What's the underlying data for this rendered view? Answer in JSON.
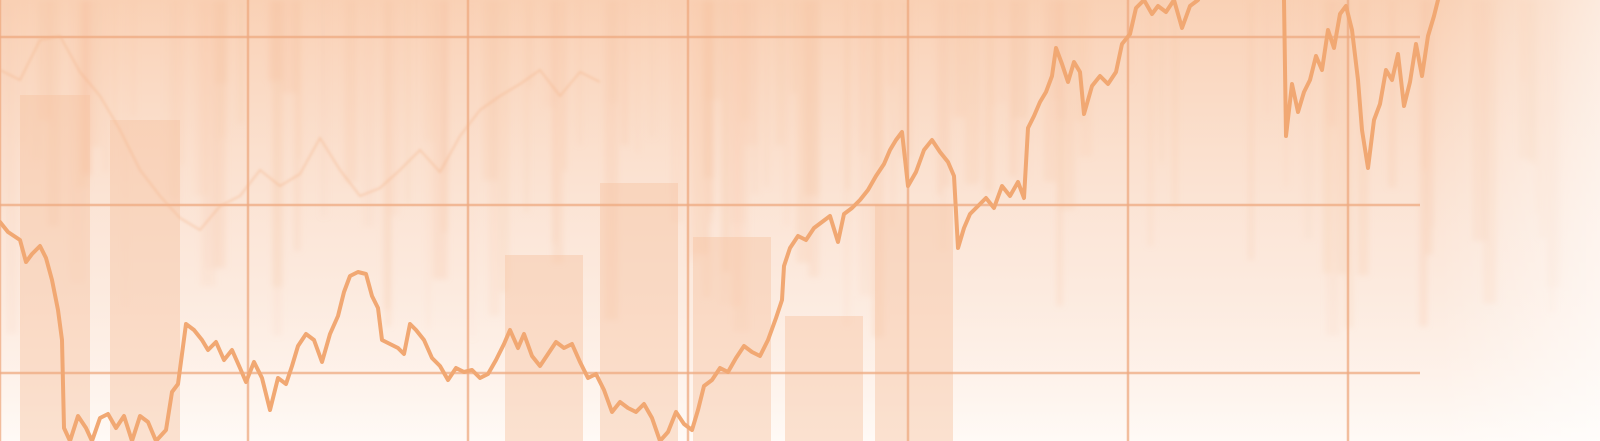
{
  "image": {
    "subject": "abstract-financial-chart-background",
    "palette": {
      "background": "#fdf3ec",
      "wash_top": "#f9cfb2",
      "wash_bottom": "#fffaf6",
      "grid": "#eeaa80",
      "line": "#f1a873",
      "bars": "#f6c3a2"
    }
  }
}
